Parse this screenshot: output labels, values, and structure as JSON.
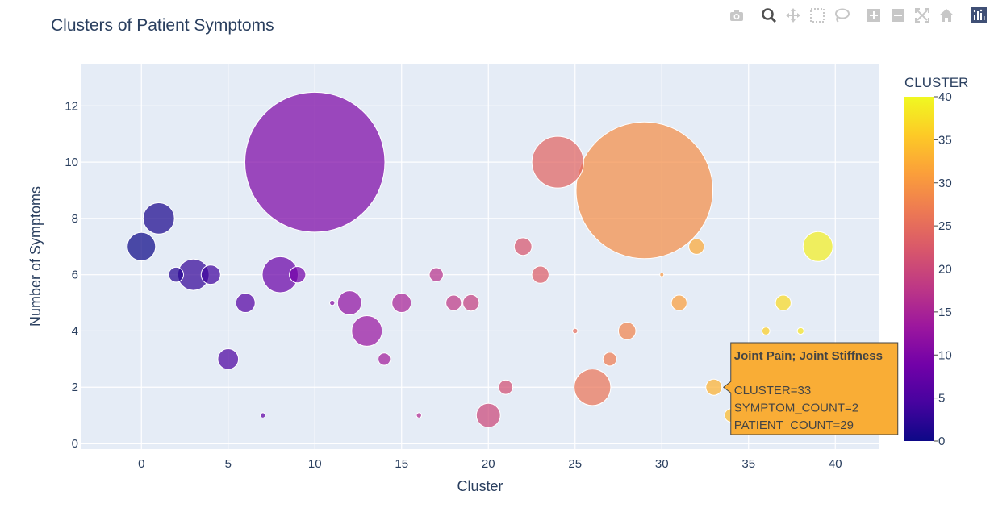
{
  "chart_data": {
    "type": "scatter",
    "title": "Clusters of Patient Symptoms",
    "xlabel": "Cluster",
    "ylabel": "Number of Symptoms",
    "xlim": [
      -3.5,
      42.5
    ],
    "ylim": [
      -0.2,
      13.5
    ],
    "xticks": [
      0,
      5,
      10,
      15,
      20,
      25,
      30,
      35,
      40
    ],
    "yticks": [
      0,
      2,
      4,
      6,
      8,
      10,
      12
    ],
    "grid": true,
    "colorbar": {
      "title": "CLUSTER",
      "range": [
        0,
        40
      ],
      "ticks": [
        0,
        5,
        10,
        15,
        20,
        25,
        30,
        35,
        40
      ],
      "colorscale": "plasma"
    },
    "marker_size_field": "PATIENT_COUNT",
    "points": [
      {
        "cluster": 0,
        "symptom_count": 7,
        "patient_count": 90
      },
      {
        "cluster": 1,
        "symptom_count": 8,
        "patient_count": 110
      },
      {
        "cluster": 2,
        "symptom_count": 6,
        "patient_count": 25
      },
      {
        "cluster": 3,
        "symptom_count": 6,
        "patient_count": 110
      },
      {
        "cluster": 4,
        "symptom_count": 6,
        "patient_count": 42
      },
      {
        "cluster": 5,
        "symptom_count": 3,
        "patient_count": 48
      },
      {
        "cluster": 6,
        "symptom_count": 5,
        "patient_count": 42
      },
      {
        "cluster": 7,
        "symptom_count": 1,
        "patient_count": 3
      },
      {
        "cluster": 8,
        "symptom_count": 6,
        "patient_count": 145
      },
      {
        "cluster": 9,
        "symptom_count": 6,
        "patient_count": 30
      },
      {
        "cluster": 10,
        "symptom_count": 10,
        "patient_count": 2200
      },
      {
        "cluster": 11,
        "symptom_count": 5,
        "patient_count": 3
      },
      {
        "cluster": 12,
        "symptom_count": 5,
        "patient_count": 65
      },
      {
        "cluster": 13,
        "symptom_count": 4,
        "patient_count": 105
      },
      {
        "cluster": 14,
        "symptom_count": 3,
        "patient_count": 17
      },
      {
        "cluster": 15,
        "symptom_count": 5,
        "patient_count": 42
      },
      {
        "cluster": 16,
        "symptom_count": 1,
        "patient_count": 3
      },
      {
        "cluster": 17,
        "symptom_count": 6,
        "patient_count": 22
      },
      {
        "cluster": 18,
        "symptom_count": 5,
        "patient_count": 27
      },
      {
        "cluster": 19,
        "symptom_count": 5,
        "patient_count": 30
      },
      {
        "cluster": 20,
        "symptom_count": 1,
        "patient_count": 65
      },
      {
        "cluster": 21,
        "symptom_count": 2,
        "patient_count": 23
      },
      {
        "cluster": 22,
        "symptom_count": 7,
        "patient_count": 35
      },
      {
        "cluster": 23,
        "symptom_count": 6,
        "patient_count": 33
      },
      {
        "cluster": 24,
        "symptom_count": 10,
        "patient_count": 300
      },
      {
        "cluster": 25,
        "symptom_count": 4,
        "patient_count": 3
      },
      {
        "cluster": 26,
        "symptom_count": 2,
        "patient_count": 150
      },
      {
        "cluster": 27,
        "symptom_count": 3,
        "patient_count": 21
      },
      {
        "cluster": 28,
        "symptom_count": 4,
        "patient_count": 34
      },
      {
        "cluster": 29,
        "symptom_count": 9,
        "patient_count": 2100
      },
      {
        "cluster": 30,
        "symptom_count": 6,
        "patient_count": 1
      },
      {
        "cluster": 31,
        "symptom_count": 5,
        "patient_count": 27
      },
      {
        "cluster": 32,
        "symptom_count": 7,
        "patient_count": 27
      },
      {
        "cluster": 33,
        "symptom_count": 2,
        "patient_count": 29
      },
      {
        "cluster": 34,
        "symptom_count": 1,
        "patient_count": 20
      },
      {
        "cluster": 36,
        "symptom_count": 4,
        "patient_count": 7
      },
      {
        "cluster": 37,
        "symptom_count": 5,
        "patient_count": 27
      },
      {
        "cluster": 38,
        "symptom_count": 4,
        "patient_count": 5
      },
      {
        "cluster": 39,
        "symptom_count": 7,
        "patient_count": 100
      }
    ]
  },
  "hover": {
    "cluster": 33,
    "title": "Joint Pain; Joint Stiffness",
    "lines": [
      "CLUSTER=33",
      "SYMPTOM_COUNT=2",
      "PATIENT_COUNT=29"
    ],
    "bg_color": "#f9ad36"
  },
  "modebar": {
    "icons": [
      "camera-icon",
      "zoom-icon",
      "pan-icon",
      "box-select-icon",
      "lasso-select-icon",
      "zoom-in-icon",
      "zoom-out-icon",
      "autoscale-icon",
      "reset-axes-icon",
      "plotly-logo-icon"
    ]
  }
}
